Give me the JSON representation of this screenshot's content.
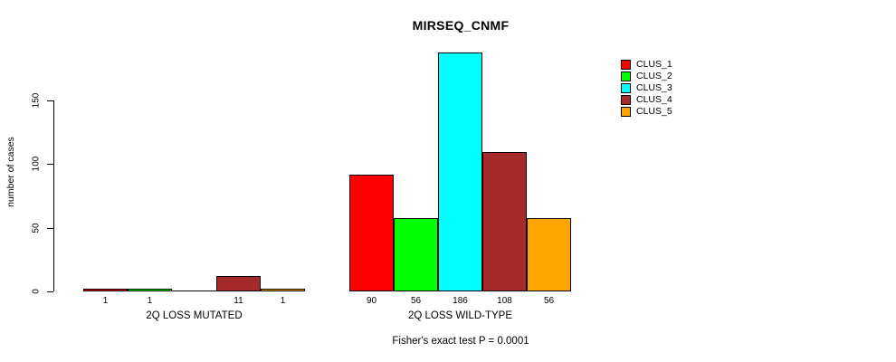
{
  "chart_data": {
    "type": "bar",
    "title": "MIRSEQ_CNMF",
    "xlabel": "",
    "ylabel": "number of cases",
    "yticks": [
      0,
      50,
      100,
      150
    ],
    "ylim": [
      0,
      190
    ],
    "grid": false,
    "legend_position": "right-outside-top",
    "categories": [
      "2Q LOSS MUTATED",
      "2Q LOSS WILD-TYPE"
    ],
    "series": [
      {
        "name": "CLUS_1",
        "color": "#FF0000",
        "values": [
          1,
          90
        ]
      },
      {
        "name": "CLUS_2",
        "color": "#00FF00",
        "values": [
          1,
          56
        ]
      },
      {
        "name": "CLUS_3",
        "color": "#00FFFF",
        "values": [
          0,
          186
        ]
      },
      {
        "name": "CLUS_4",
        "color": "#A52A2A",
        "values": [
          11,
          108
        ]
      },
      {
        "name": "CLUS_5",
        "color": "#FFA500",
        "values": [
          1,
          56
        ]
      }
    ],
    "bar_labels": [
      [
        "1",
        "1",
        "",
        "11",
        "1"
      ],
      [
        "90",
        "56",
        "186",
        "108",
        "56"
      ]
    ],
    "legend": [
      {
        "label": "CLUS_1",
        "color": "#FF0000"
      },
      {
        "label": "CLUS_2",
        "color": "#00FF00"
      },
      {
        "label": "CLUS_3",
        "color": "#00FFFF"
      },
      {
        "label": "CLUS_4",
        "color": "#A52A2A"
      },
      {
        "label": "CLUS_5",
        "color": "#FFA500"
      }
    ],
    "footnote": "Fisher's exact test P = 0.0001"
  }
}
